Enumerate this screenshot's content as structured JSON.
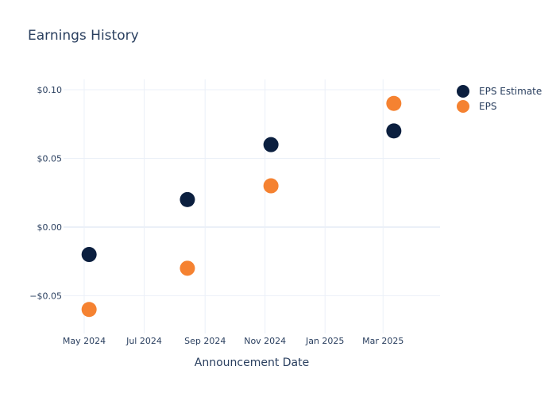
{
  "chart_data": {
    "type": "scatter",
    "title": "Earnings History",
    "xlabel": "Announcement Date",
    "ylabel": "",
    "x_axis_type": "date",
    "xlim": [
      "2024-04-10",
      "2025-04-28"
    ],
    "ylim": [
      -0.0775,
      0.1075
    ],
    "x_ticks": [
      {
        "value": "2024-05-01",
        "label": "May 2024"
      },
      {
        "value": "2024-07-01",
        "label": "Jul 2024"
      },
      {
        "value": "2024-09-01",
        "label": "Sep 2024"
      },
      {
        "value": "2024-11-01",
        "label": "Nov 2024"
      },
      {
        "value": "2025-01-01",
        "label": "Jan 2025"
      },
      {
        "value": "2025-03-01",
        "label": "Mar 2025"
      }
    ],
    "y_ticks": [
      {
        "value": 0.1,
        "label": "$0.10"
      },
      {
        "value": 0.05,
        "label": "$0.05"
      },
      {
        "value": 0.0,
        "label": "$0.00"
      },
      {
        "value": -0.05,
        "label": "−$0.05"
      }
    ],
    "grid": true,
    "legend_position": "top-right",
    "x": [
      "2024-05-06",
      "2024-08-14",
      "2024-11-07",
      "2025-03-12"
    ],
    "series": [
      {
        "name": "EPS Estimate",
        "color": "#0b1f3f",
        "values": [
          -0.02,
          0.02,
          0.06,
          0.07
        ]
      },
      {
        "name": "EPS",
        "color": "#f58231",
        "values": [
          -0.06,
          -0.03,
          0.03,
          0.09
        ]
      }
    ]
  }
}
